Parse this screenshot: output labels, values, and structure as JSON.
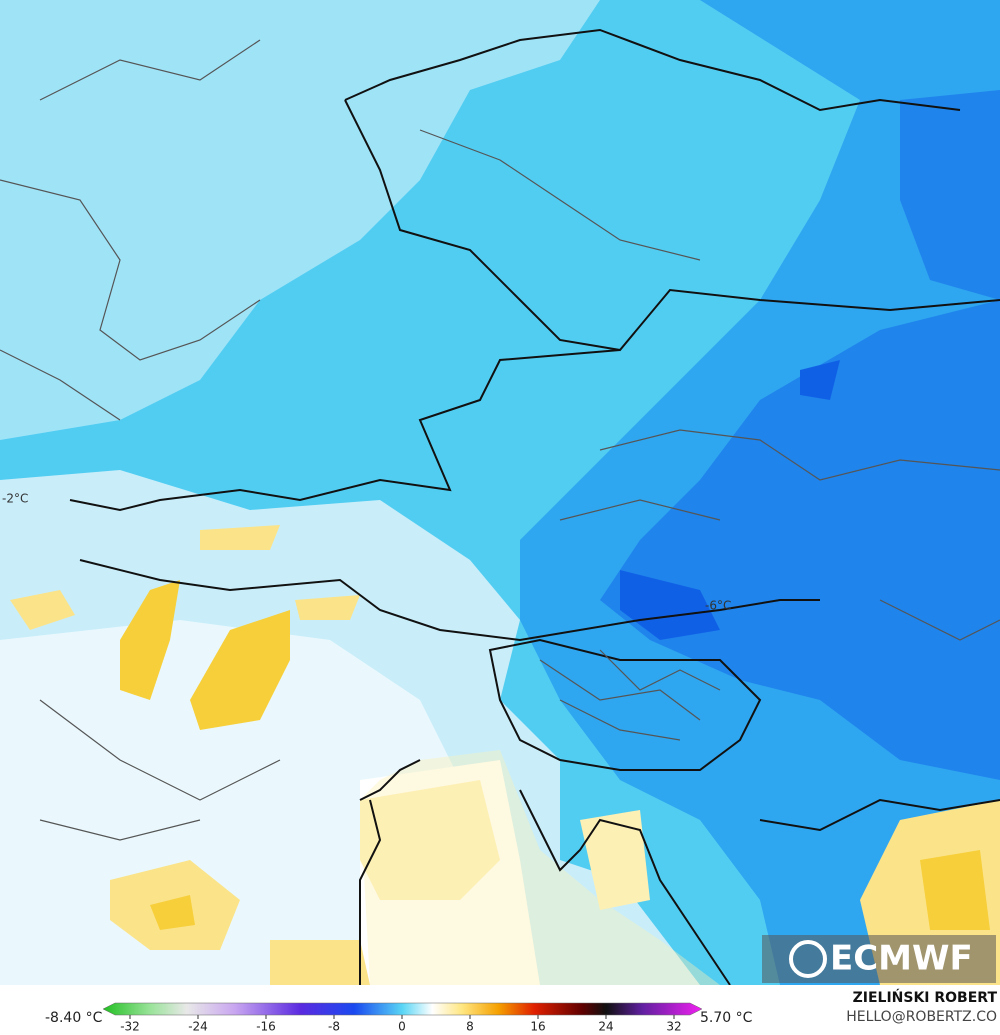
{
  "map": {
    "labels": [
      {
        "text": "-2°C"
      },
      {
        "text": "-6°C"
      }
    ],
    "logo": "ECMWF",
    "colorbar": {
      "min_label": "-8.40 °C",
      "max_label": "5.70 °C",
      "ticks": [
        -32,
        -24,
        -16,
        -8,
        0,
        8,
        16,
        24,
        32
      ]
    },
    "credit": {
      "name": "ZIELIŃSKI ROBERT",
      "contact": "HELLO@ROBERTZ.CO"
    }
  }
}
